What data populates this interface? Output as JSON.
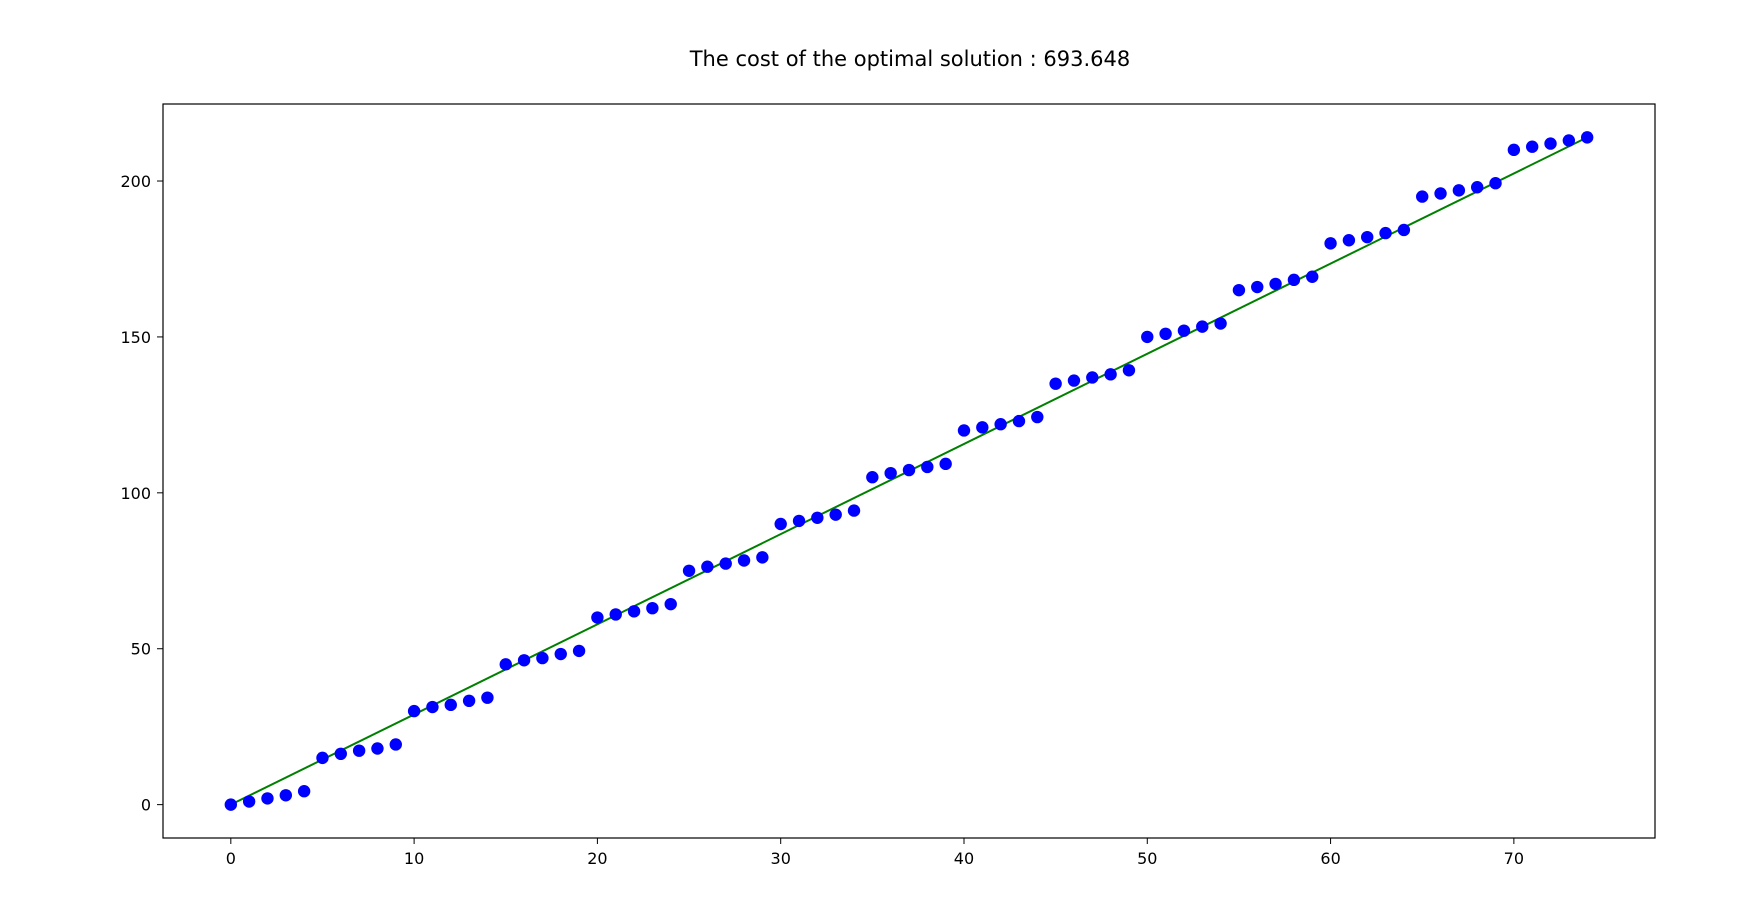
{
  "chart_data": {
    "type": "scatter",
    "title": "The cost of the optimal solution : 693.648",
    "xlabel": "",
    "ylabel": "",
    "xlim": [
      -3.7,
      77.7
    ],
    "ylim": [
      -10.7,
      224.7
    ],
    "xticks": [
      0,
      10,
      20,
      30,
      40,
      50,
      60,
      70
    ],
    "yticks": [
      0,
      50,
      100,
      150,
      200
    ],
    "grid": false,
    "series": [
      {
        "marker": "circle",
        "color": "#0000ff",
        "x": [
          0,
          1,
          2,
          3,
          4,
          5,
          6,
          7,
          8,
          9,
          10,
          11,
          12,
          13,
          14,
          15,
          16,
          17,
          18,
          19,
          20,
          21,
          22,
          23,
          24,
          25,
          26,
          27,
          28,
          29,
          30,
          31,
          32,
          33,
          34,
          35,
          36,
          37,
          38,
          39,
          40,
          41,
          42,
          43,
          44,
          45,
          46,
          47,
          48,
          49,
          50,
          51,
          52,
          53,
          54,
          55,
          56,
          57,
          58,
          59,
          60,
          61,
          62,
          63,
          64,
          65,
          66,
          67,
          68,
          69,
          70,
          71,
          72,
          73,
          74
        ],
        "y": [
          0,
          1,
          2,
          3,
          4.3,
          15,
          16.3,
          17.3,
          18,
          19.3,
          30,
          31.3,
          32,
          33.3,
          34.3,
          45,
          46.3,
          47,
          48.3,
          49.3,
          60,
          61,
          62,
          63,
          64.3,
          75,
          76.3,
          77.3,
          78.3,
          79.3,
          90,
          91,
          92,
          93,
          94.3,
          105,
          106.3,
          107.3,
          108.3,
          109.3,
          120,
          121,
          122,
          123,
          124.3,
          135,
          136,
          137,
          138,
          139.3,
          150,
          151,
          152,
          153.3,
          154.3,
          165,
          166,
          167,
          168.3,
          169.3,
          180,
          181,
          182,
          183.3,
          184.3,
          195,
          196,
          197,
          198,
          199.3,
          210,
          211,
          212,
          213,
          214
        ]
      },
      {
        "marker": "line",
        "color": "#008000",
        "x": [
          0,
          74
        ],
        "y": [
          0,
          214
        ]
      }
    ]
  }
}
